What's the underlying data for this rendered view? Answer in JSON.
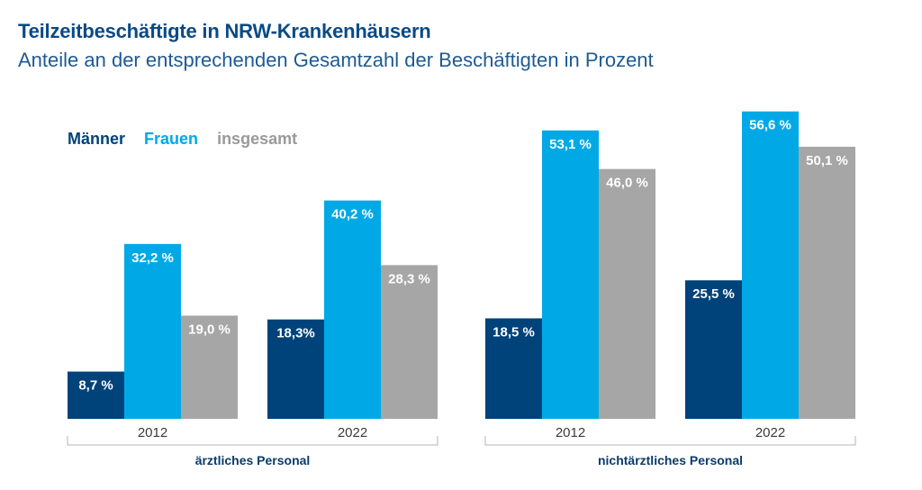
{
  "title": "Teilzeitbeschäftigte in NRW-Krankenhäusern",
  "subtitle": "Anteile an der entsprechenden Gesamtzahl der Beschäftigten in Prozent",
  "colors": {
    "maenner": "#00427a",
    "frauen": "#00a9e6",
    "insgesamt": "#a6a6a6"
  },
  "chart_data": {
    "type": "bar",
    "unit": "%",
    "series": [
      {
        "name": "Männer",
        "color": "#00427a"
      },
      {
        "name": "Frauen",
        "color": "#00a9e6"
      },
      {
        "name": "insgesamt",
        "color": "#a6a6a6"
      }
    ],
    "groups": [
      {
        "label": "ärztliches Personal",
        "years": [
          {
            "year": "2012",
            "values": [
              8.7,
              32.2,
              19.0
            ],
            "labels": [
              "8,7 %",
              "32,2 %",
              "19,0 %"
            ]
          },
          {
            "year": "2022",
            "values": [
              18.3,
              40.2,
              28.3
            ],
            "labels": [
              "18,3%",
              "40,2 %",
              "28,3 %"
            ]
          }
        ]
      },
      {
        "label": "nichtärztliches Personal",
        "years": [
          {
            "year": "2012",
            "values": [
              18.5,
              53.1,
              46.0
            ],
            "labels": [
              "18,5 %",
              "53,1 %",
              "46,0 %"
            ]
          },
          {
            "year": "2022",
            "values": [
              25.5,
              56.6,
              50.1
            ],
            "labels": [
              "25,5 %",
              "56,6 %",
              "50,1 %"
            ]
          }
        ]
      }
    ],
    "ylim": [
      0,
      60
    ]
  }
}
